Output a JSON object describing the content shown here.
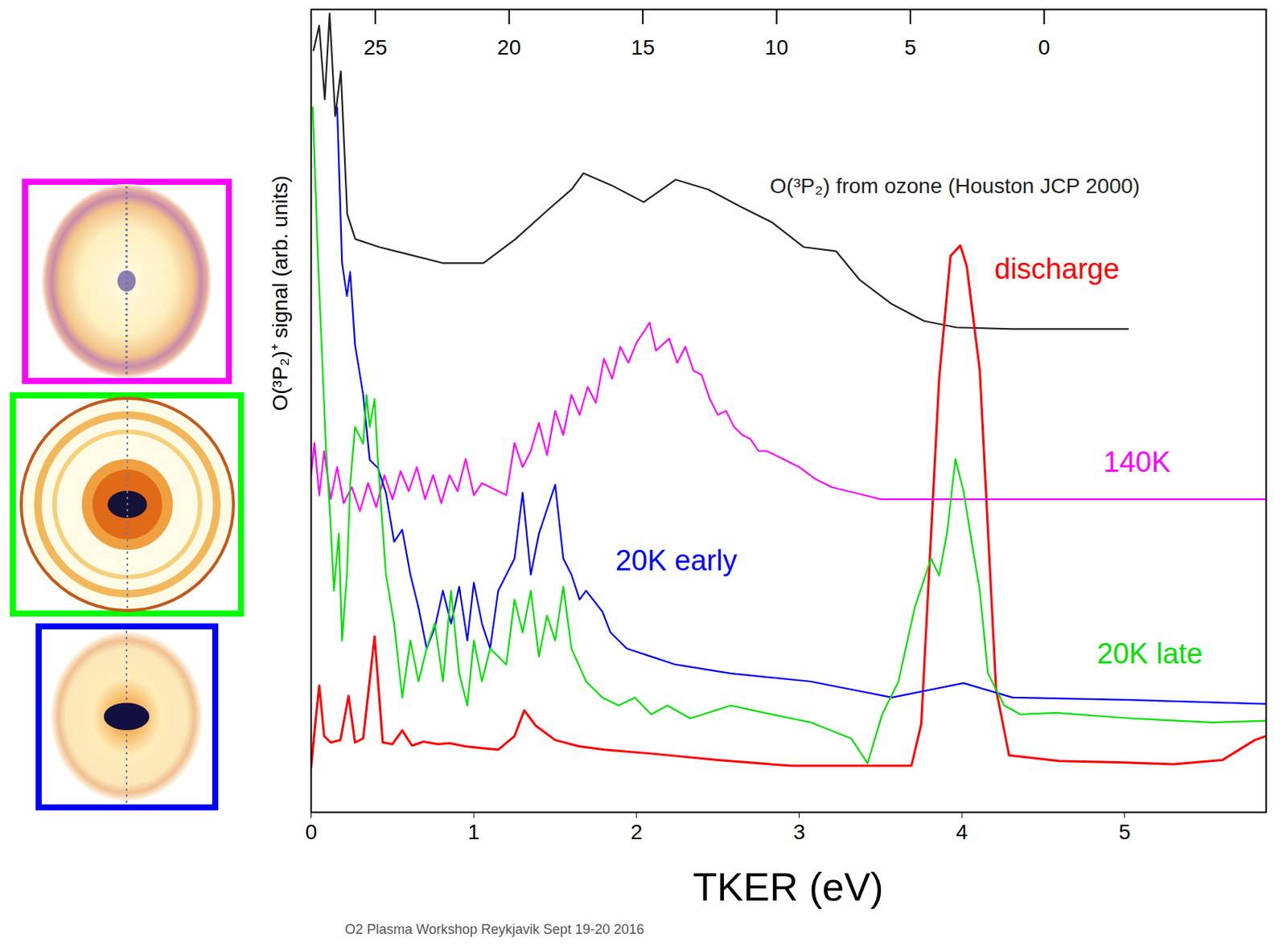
{
  "chart_data": {
    "type": "line",
    "x_label": "TKER (eV)",
    "y_label": "O(³P₂)⁺ signal (arb. units)",
    "caption": "O2 Plasma Workshop Reykjavik Sept 19-20 2016",
    "xlim": [
      0,
      5.87
    ],
    "xticks": [
      0,
      1,
      2,
      3,
      4,
      5
    ],
    "x2lim": [
      27.4,
      -8.3
    ],
    "x2ticks": [
      25,
      20,
      15,
      10,
      5,
      0
    ],
    "ylim": [
      0,
      100
    ],
    "tick_labels": "x",
    "grid": false,
    "series": [
      {
        "name": "O(³P₂) from ozone (Houston JCP 2000)",
        "color": "#222222",
        "axis": "x2",
        "x": [
          27.31,
          27.1,
          26.89,
          26.71,
          26.5,
          26.29,
          26.05,
          25.75,
          24.85,
          23.65,
          22.46,
          20.96,
          19.76,
          18.56,
          17.66,
          17.22,
          16.17,
          14.97,
          13.77,
          12.57,
          11.38,
          10.18,
          8.98,
          7.78,
          6.89,
          5.69,
          4.49,
          3.29,
          1.2,
          -3.14
        ],
        "values": [
          94.9,
          98,
          88.8,
          99.5,
          86.7,
          92.3,
          74.5,
          71.4,
          70.4,
          69.4,
          68.4,
          68.4,
          71.4,
          75,
          77.6,
          79.6,
          78.1,
          76,
          78.8,
          77.6,
          75.5,
          73.5,
          70.4,
          69.9,
          66.3,
          63.3,
          61.2,
          60.4,
          60.2,
          60.2
        ]
      },
      {
        "name": "discharge",
        "color": "#ff0000",
        "x": [
          0,
          0.03,
          0.05,
          0.08,
          0.12,
          0.18,
          0.23,
          0.27,
          0.32,
          0.39,
          0.44,
          0.5,
          0.56,
          0.62,
          0.69,
          0.78,
          0.85,
          0.95,
          1.05,
          1.15,
          1.25,
          1.31,
          1.38,
          1.5,
          1.65,
          1.8,
          2.1,
          2.5,
          2.95,
          3.3,
          3.69,
          3.75,
          3.86,
          3.93,
          3.99,
          4.03,
          4.11,
          4.21,
          4.29,
          4.6,
          5.0,
          5.3,
          5.6,
          5.8,
          5.87
        ],
        "values": [
          5.6,
          12,
          15.8,
          9.5,
          8.7,
          9.0,
          14.5,
          8.7,
          9.2,
          21.9,
          8.7,
          8.5,
          10.2,
          8.3,
          8.8,
          8.5,
          8.6,
          8.2,
          8.0,
          7.8,
          9.5,
          12.7,
          10.8,
          9.0,
          8.2,
          7.8,
          7.3,
          6.5,
          5.8,
          5.8,
          5.8,
          11,
          54,
          69.3,
          70.6,
          68,
          55,
          15.3,
          7.1,
          6.4,
          6.2,
          6.0,
          6.5,
          9.0,
          9.5
        ]
      },
      {
        "name": "140K",
        "color": "#ff00ff",
        "x": [
          0,
          0.02,
          0.05,
          0.08,
          0.12,
          0.16,
          0.2,
          0.25,
          0.3,
          0.35,
          0.4,
          0.45,
          0.5,
          0.55,
          0.6,
          0.65,
          0.7,
          0.75,
          0.8,
          0.85,
          0.9,
          0.95,
          1.0,
          1.05,
          1.1,
          1.2,
          1.25,
          1.3,
          1.35,
          1.4,
          1.45,
          1.5,
          1.55,
          1.6,
          1.65,
          1.7,
          1.75,
          1.8,
          1.85,
          1.9,
          1.95,
          2.0,
          2.05,
          2.08,
          2.12,
          2.2,
          2.25,
          2.3,
          2.35,
          2.4,
          2.45,
          2.5,
          2.55,
          2.6,
          2.65,
          2.7,
          2.75,
          2.8,
          2.85,
          2.9,
          3.0,
          3.1,
          3.2,
          3.3,
          3.4,
          3.5,
          3.7,
          4.0,
          4.5,
          5.0,
          5.5,
          5.87
        ],
        "values": [
          42,
          46,
          39.5,
          45,
          39,
          43,
          38.5,
          40.5,
          37.5,
          41,
          38,
          42,
          39,
          42.5,
          40,
          43,
          39,
          42,
          38.5,
          42,
          40,
          44,
          39.5,
          41,
          40.5,
          39.5,
          46,
          43,
          45,
          48.5,
          44.5,
          50,
          47,
          52,
          49.5,
          53,
          51,
          56.5,
          54,
          58,
          56,
          58.5,
          60,
          61,
          57.5,
          59,
          56,
          58,
          55,
          54.5,
          51.5,
          49.5,
          50,
          48,
          47,
          46.5,
          45,
          45,
          44.5,
          44,
          43,
          41.5,
          40.5,
          40,
          39.5,
          39,
          39,
          39,
          39,
          39,
          39,
          39
        ]
      },
      {
        "name": "20K early",
        "color": "#0000ff",
        "x": [
          0.16,
          0.19,
          0.22,
          0.24,
          0.27,
          0.32,
          0.36,
          0.41,
          0.46,
          0.51,
          0.56,
          0.61,
          0.66,
          0.71,
          0.76,
          0.81,
          0.86,
          0.91,
          0.96,
          1.0,
          1.05,
          1.1,
          1.15,
          1.2,
          1.25,
          1.3,
          1.35,
          1.4,
          1.5,
          1.55,
          1.6,
          1.65,
          1.69,
          1.79,
          1.84,
          1.94,
          2.09,
          2.24,
          2.58,
          3.07,
          3.57,
          4.01,
          4.31,
          5.04,
          5.87
        ],
        "values": [
          87.8,
          68.4,
          64.3,
          67.3,
          58.2,
          52,
          43.9,
          42.9,
          39.8,
          33.7,
          35.2,
          29.6,
          25.5,
          20.4,
          23,
          27.6,
          23.5,
          28.1,
          21.4,
          28.6,
          23.5,
          20.4,
          27.6,
          29.6,
          31.6,
          39.8,
          29.6,
          34.7,
          40.8,
          31.6,
          29.6,
          26.5,
          27.6,
          25,
          22.4,
          20.4,
          19.4,
          18.4,
          17.3,
          16.3,
          14.3,
          16.1,
          14.3,
          14,
          13.5
        ]
      },
      {
        "name": "20K late",
        "color": "#00e000",
        "x": [
          0.01,
          0.04,
          0.09,
          0.12,
          0.14,
          0.17,
          0.19,
          0.22,
          0.24,
          0.27,
          0.32,
          0.34,
          0.36,
          0.39,
          0.41,
          0.46,
          0.51,
          0.56,
          0.61,
          0.66,
          0.71,
          0.76,
          0.81,
          0.86,
          0.91,
          0.96,
          1.0,
          1.05,
          1.1,
          1.2,
          1.25,
          1.3,
          1.35,
          1.4,
          1.45,
          1.5,
          1.55,
          1.6,
          1.69,
          1.79,
          1.89,
          1.99,
          2.09,
          2.19,
          2.33,
          2.58,
          2.83,
          3.07,
          3.32,
          3.42,
          3.51,
          3.61,
          3.71,
          3.81,
          3.86,
          3.91,
          3.96,
          4.01,
          4.06,
          4.11,
          4.16,
          4.26,
          4.36,
          4.58,
          5.04,
          5.54,
          5.87
        ],
        "values": [
          87.8,
          70,
          45.9,
          35.7,
          27.6,
          34.7,
          21.4,
          29.6,
          40.8,
          48,
          45.9,
          52,
          48,
          51.5,
          43.9,
          29.6,
          23.5,
          14.3,
          21.4,
          16.3,
          20.4,
          23.5,
          16.3,
          27.6,
          17.3,
          13.3,
          21.4,
          16.3,
          20.4,
          18.4,
          26.5,
          22.4,
          27.6,
          19.4,
          24.5,
          21.4,
          28.1,
          20.4,
          16.3,
          14.3,
          13.3,
          14.3,
          12.2,
          13.3,
          11.7,
          13.3,
          12.2,
          11.2,
          9.2,
          6.1,
          12.2,
          16.3,
          25.5,
          31.6,
          29.5,
          35,
          44,
          40,
          33.7,
          27.6,
          17.3,
          13.3,
          12.2,
          12.4,
          11.7,
          11.2,
          11.4
        ]
      }
    ]
  }
}
